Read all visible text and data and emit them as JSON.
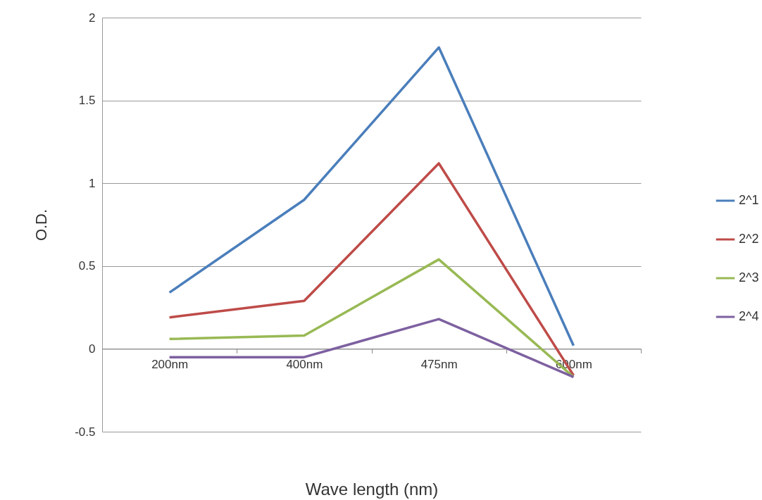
{
  "chart_data": {
    "type": "line",
    "xlabel": "Wave length (nm)",
    "ylabel": "O.D.",
    "categories": [
      "200nm",
      "400nm",
      "475nm",
      "600nm"
    ],
    "series": [
      {
        "name": "2^1",
        "color": "#4a7ebb",
        "values": [
          0.34,
          0.9,
          1.82,
          0.02
        ]
      },
      {
        "name": "2^2",
        "color": "#be4b48",
        "values": [
          0.19,
          0.29,
          1.12,
          -0.16
        ]
      },
      {
        "name": "2^3",
        "color": "#98b954",
        "values": [
          0.06,
          0.08,
          0.54,
          -0.17
        ]
      },
      {
        "name": "2^4",
        "color": "#7d60a0",
        "values": [
          -0.05,
          -0.05,
          0.18,
          -0.17
        ]
      }
    ],
    "ylim": [
      -0.5,
      2
    ],
    "yticks": [
      -0.5,
      0,
      0.5,
      1,
      1.5,
      2
    ],
    "grid": "y",
    "legend": "right",
    "marker": "none",
    "line_style": "solid"
  }
}
